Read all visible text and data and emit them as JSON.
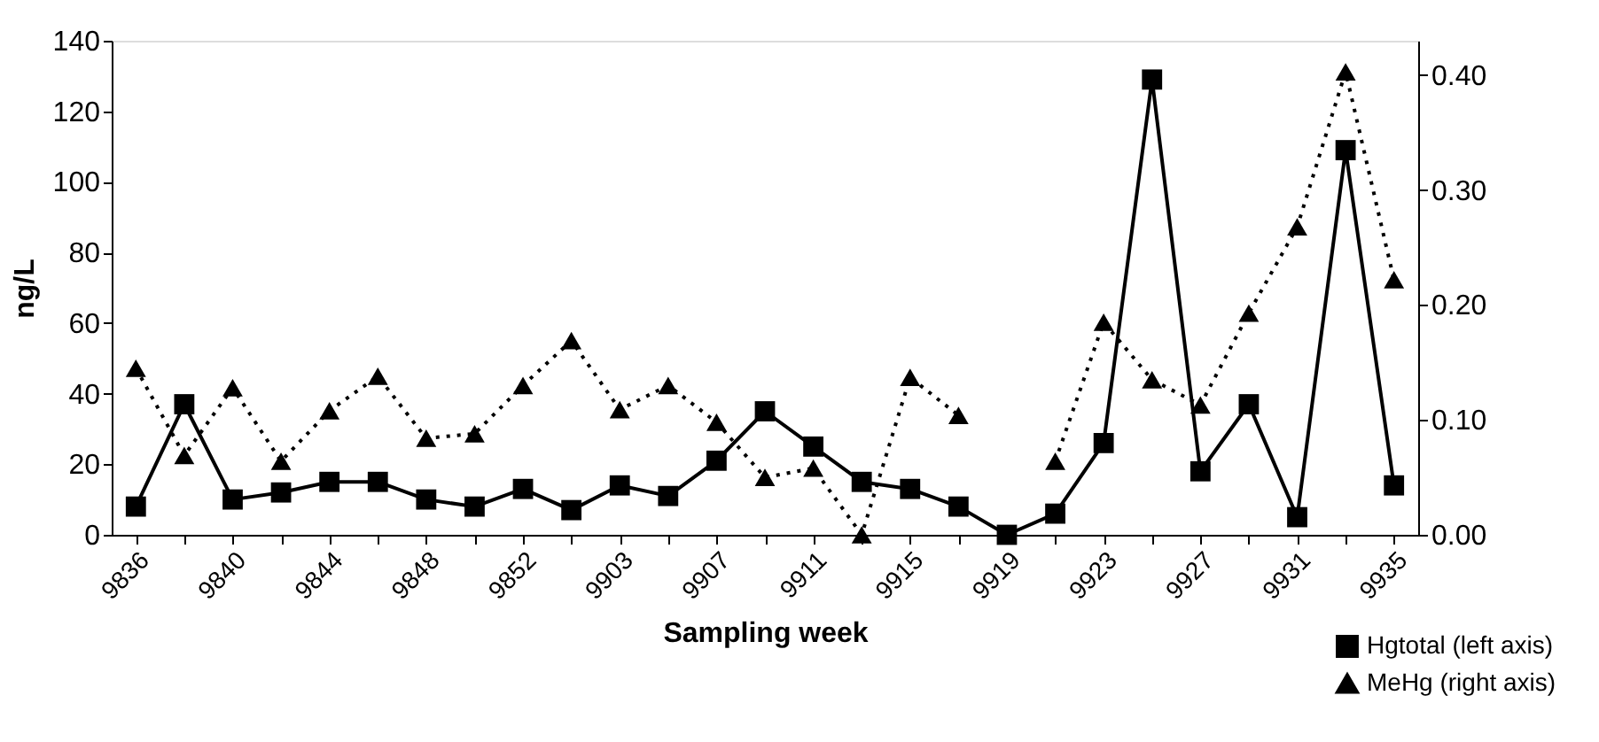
{
  "chart_data": {
    "type": "line",
    "xlabel": "Sampling week",
    "ylabel": "ng/L",
    "categories": [
      "9836",
      null,
      "9840",
      null,
      "9844",
      null,
      "9848",
      null,
      "9852",
      null,
      "9903",
      null,
      "9907",
      null,
      "9911",
      null,
      "9915",
      null,
      "9919",
      null,
      "9923",
      null,
      "9927",
      null,
      "9931",
      null,
      "9935"
    ],
    "series": [
      {
        "name": "Hgtotal (left axis)",
        "color": "#000000",
        "marker": "square",
        "line_style": "solid",
        "values": [
          8,
          37,
          10,
          12,
          15,
          15,
          10,
          8,
          13,
          7,
          14,
          11,
          21,
          35,
          25,
          15,
          13,
          8,
          0,
          6,
          26,
          129,
          18,
          37,
          5,
          109,
          14
        ]
      },
      {
        "name": "MeHg (right axis)",
        "color": "#000000",
        "marker": "triangle",
        "line_style": "dotted",
        "axis": "y2",
        "values": [
          0.145,
          0.069,
          0.128,
          0.064,
          0.108,
          0.138,
          0.084,
          0.088,
          0.13,
          0.169,
          0.109,
          0.13,
          0.098,
          0.05,
          0.058,
          0.0,
          0.137,
          0.104,
          null,
          0.064,
          0.185,
          0.135,
          0.113,
          0.193,
          0.268,
          0.403,
          0.222
        ]
      }
    ],
    "ylim": [
      0,
      140
    ],
    "yticks": [
      0,
      20,
      40,
      60,
      80,
      100,
      120,
      140
    ],
    "y2lim": [
      0,
      0.43
    ],
    "y2ticks": [
      {
        "value": 0,
        "label": "0.00"
      },
      {
        "value": 0.1,
        "label": "0.10"
      },
      {
        "value": 0.2,
        "label": "0.20"
      },
      {
        "value": 0.3,
        "label": "0.30"
      },
      {
        "value": 0.4,
        "label": "0.40"
      }
    ],
    "grid": false,
    "legend": "bottom right"
  }
}
